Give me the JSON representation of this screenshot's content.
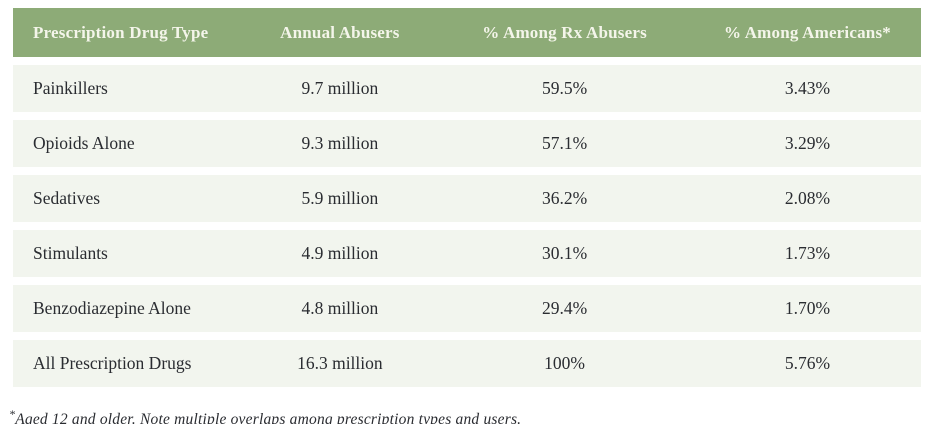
{
  "chart_data": {
    "type": "table",
    "title": "",
    "columns": [
      "Prescription Drug Type",
      "Annual Abusers",
      "% Among Rx Abusers",
      "% Among Americans*"
    ],
    "rows": [
      [
        "Painkillers",
        "9.7 million",
        "59.5%",
        "3.43%"
      ],
      [
        "Opioids Alone",
        "9.3 million",
        "57.1%",
        "3.29%"
      ],
      [
        "Sedatives",
        "5.9 million",
        "36.2%",
        "2.08%"
      ],
      [
        "Stimulants",
        "4.9 million",
        "30.1%",
        "1.73%"
      ],
      [
        "Benzodiazepine Alone",
        "4.8 million",
        "29.4%",
        "1.70%"
      ],
      [
        "All Prescription Drugs",
        "16.3 million",
        "100%",
        "5.76%"
      ]
    ],
    "series": [
      {
        "name": "Annual Abusers (millions)",
        "values": [
          9.7,
          9.3,
          5.9,
          4.9,
          4.8,
          16.3
        ]
      },
      {
        "name": "% Among Rx Abusers",
        "values": [
          59.5,
          57.1,
          36.2,
          30.1,
          29.4,
          100
        ]
      },
      {
        "name": "% Among Americans",
        "values": [
          3.43,
          3.29,
          2.08,
          1.73,
          1.7,
          5.76
        ]
      }
    ]
  },
  "footnote": {
    "marker": "*",
    "text": "Aged 12 and older. Note multiple overlaps among prescription types and users."
  },
  "colors": {
    "header_bg": "#8dab77",
    "header_text": "#f4f5ea",
    "row_bg": "#f2f5ee",
    "body_text": "#2a2c31",
    "page_bg": "#ffffff"
  }
}
